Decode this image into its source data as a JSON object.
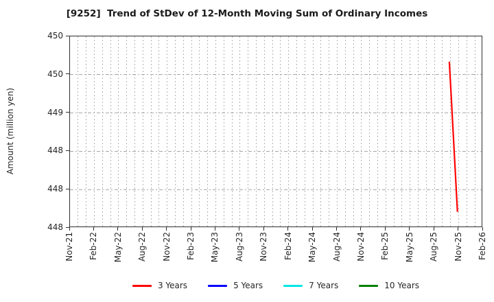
{
  "chart_data": {
    "type": "line",
    "title": "[9252]  Trend of StDev of 12-Month Moving Sum of Ordinary Incomes",
    "ylabel": "Amount (million yen)",
    "xlabel": "",
    "x_unit": "month",
    "x_total_months": 51,
    "x_tick_labels": [
      "Nov-21",
      "Feb-22",
      "May-22",
      "Aug-22",
      "Nov-22",
      "Feb-23",
      "May-23",
      "Aug-23",
      "Nov-23",
      "Feb-24",
      "May-24",
      "Aug-24",
      "Nov-24",
      "Feb-25",
      "May-25",
      "Aug-25",
      "Nov-25",
      "Feb-26"
    ],
    "x_tick_month_indices": [
      0,
      3,
      6,
      9,
      12,
      15,
      18,
      21,
      24,
      27,
      30,
      33,
      36,
      39,
      42,
      45,
      48,
      51
    ],
    "y_tick_labels": [
      "450",
      "450",
      "449",
      "448",
      "448",
      "448"
    ],
    "y_tick_values": [
      450.0,
      449.5,
      449.0,
      448.5,
      448.0,
      447.5
    ],
    "ylim": [
      447.5,
      450.0
    ],
    "grid": true,
    "legend_position": "bottom-horizontal",
    "series": [
      {
        "name": "3 Years",
        "color": "#ff0000",
        "points": [
          {
            "x": "Oct-25",
            "month_index": 47,
            "value": 449.66
          },
          {
            "x": "Nov-25",
            "month_index": 48,
            "value": 447.7
          }
        ]
      },
      {
        "name": "5 Years",
        "color": "#0000ff",
        "points": []
      },
      {
        "name": "7 Years",
        "color": "#00e5e5",
        "points": []
      },
      {
        "name": "10 Years",
        "color": "#008000",
        "points": []
      }
    ]
  },
  "axes_style": {
    "spine_color": "#2e2e2e",
    "grid_vertical_color": "#b3b3b3",
    "grid_horizontal_color": "#a6a6a6",
    "text_color": "#262626"
  }
}
